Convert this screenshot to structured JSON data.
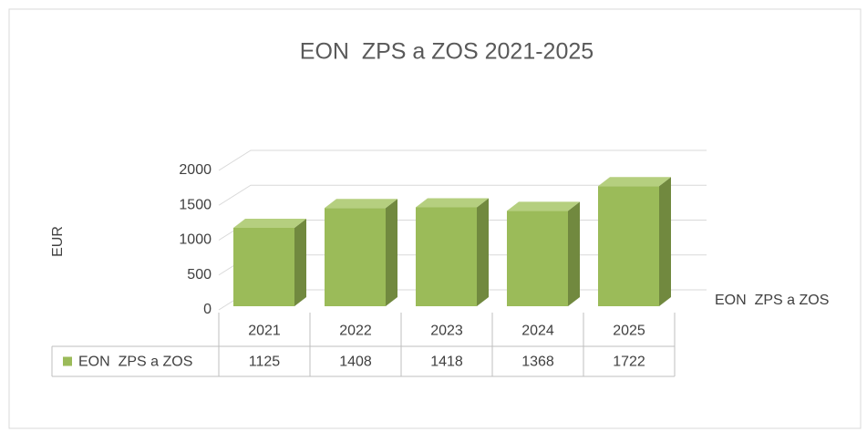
{
  "chart_data": {
    "type": "bar3d",
    "title": "EON  ZPS a ZOS 2021-2025",
    "y_label": "EUR",
    "categories": [
      "2021",
      "2022",
      "2023",
      "2024",
      "2025"
    ],
    "series": [
      {
        "name": "EON  ZPS a ZOS",
        "color": "#9bbb59",
        "values": [
          1125,
          1408,
          1418,
          1368,
          1722
        ]
      }
    ],
    "ylim": [
      0,
      2000
    ],
    "yticks": [
      0,
      500,
      1000,
      1500,
      2000
    ],
    "grid": true,
    "data_table": true
  }
}
